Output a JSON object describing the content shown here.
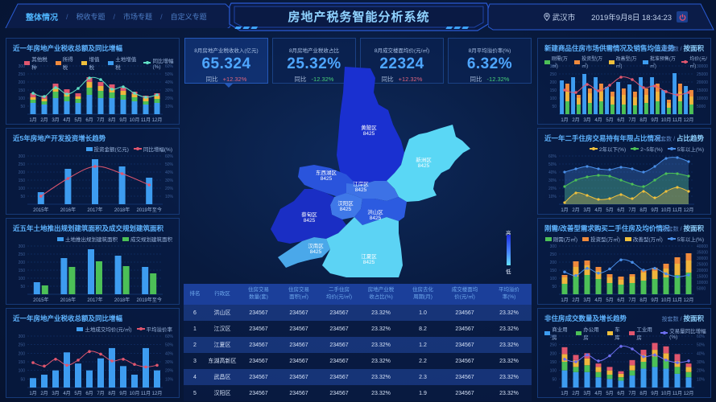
{
  "header": {
    "nav": [
      {
        "label": "整体情况",
        "active": true
      },
      {
        "label": "税收专题",
        "active": false
      },
      {
        "label": "市场专题",
        "active": false
      },
      {
        "label": "自定义专题",
        "active": false
      }
    ],
    "separator": "/",
    "title": "房地产税务智能分析系统",
    "location": "武汉市",
    "datetime": "2019年9月8日  18:34:23",
    "icons": {
      "location": "map-pin-icon",
      "power": "power-icon"
    }
  },
  "kpis": [
    {
      "label": "8月房地产业税收收入(亿元)",
      "value": "65.324",
      "compare_label": "同比",
      "change": "+12.32%",
      "direction": "up"
    },
    {
      "label": "8月房地产业税收占比",
      "value": "25.32%",
      "compare_label": "同比",
      "change": "-12.32%",
      "direction": "down"
    },
    {
      "label": "8月成交楼面均价(元/㎡)",
      "value": "22324",
      "compare_label": "同比",
      "change": "+12.32%",
      "direction": "up"
    },
    {
      "label": "8月平均溢价率(%)",
      "value": "6.32%",
      "compare_label": "同比",
      "change": "-12.32%",
      "direction": "down"
    }
  ],
  "map": {
    "districts": [
      {
        "name": "黄陂区",
        "value": "8425"
      },
      {
        "name": "新洲区",
        "value": "8425"
      },
      {
        "name": "东西湖区",
        "value": "8425"
      },
      {
        "name": "江岸区",
        "value": "8425"
      },
      {
        "name": "汉阳区",
        "value": "8425"
      },
      {
        "name": "洪山区",
        "value": "8425"
      },
      {
        "name": "蔡甸区",
        "value": "8425"
      },
      {
        "name": "汉南区",
        "value": "8425"
      },
      {
        "name": "江夏区",
        "value": "8425"
      }
    ],
    "scale_high": "高",
    "scale_low": "低"
  },
  "table": {
    "headers": [
      [
        "排名"
      ],
      [
        "行政区"
      ],
      [
        "住房交易",
        "数量(套)"
      ],
      [
        "住房交易",
        "面积(㎡)"
      ],
      [
        "二手住房",
        "均价(元/㎡)"
      ],
      [
        "房地产业税",
        "收占比(%)"
      ],
      [
        "住房去化",
        "周期(月)"
      ],
      [
        "成交楼面均",
        "价(元/㎡)"
      ],
      [
        "平均溢价",
        "率(%)"
      ]
    ],
    "rows": [
      [
        "6",
        "洪山区",
        "234567",
        "234567",
        "234567",
        "23.32%",
        "1.0",
        "234567",
        "23.32%"
      ],
      [
        "1",
        "江汉区",
        "234567",
        "234567",
        "234567",
        "23.32%",
        "8.2",
        "234567",
        "23.32%"
      ],
      [
        "2",
        "江夏区",
        "234567",
        "234567",
        "234567",
        "23.32%",
        "1.2",
        "234567",
        "23.32%"
      ],
      [
        "3",
        "东湖高新区",
        "234567",
        "234567",
        "234567",
        "23.32%",
        "2.2",
        "234567",
        "23.32%"
      ],
      [
        "4",
        "武昌区",
        "234567",
        "234567",
        "234567",
        "23.32%",
        "2.3",
        "234567",
        "23.32%"
      ],
      [
        "5",
        "汉阳区",
        "234567",
        "234567",
        "234567",
        "23.32%",
        "1.9",
        "234567",
        "23.32%"
      ]
    ]
  },
  "panels": {
    "left1": {
      "title": "近一年房地产业税收总额及同比增幅"
    },
    "left2": {
      "title": "近5年房地产开发投资增长趋势"
    },
    "left3": {
      "title": "近五年土地推出规划建筑面积及成交规划建筑面积"
    },
    "left4": {
      "title": "近一年房地产业税收总额及同比增幅"
    },
    "right1": {
      "title": "新建商品住房市场供需情况及销售均值走势",
      "switch_prefix": "按套数 /",
      "switch_active": "按面积"
    },
    "right2": {
      "title": "近一年二手住房交易持有年限占比情况",
      "switch_prefix": "按套数 /",
      "switch_active": "占比趋势"
    },
    "right3": {
      "title": "刚需/改善型需求购买二手住房及均价情况",
      "switch_prefix": "按套数 /",
      "switch_active": "按面积"
    },
    "right4": {
      "title": "非住房成交数量及增长趋势",
      "switch_prefix": "按套数 /",
      "switch_active": "按面积"
    }
  },
  "chart_data": [
    {
      "id": "left1",
      "type": "bar",
      "title": "近一年房地产业税收总额及同比增幅",
      "categories": [
        "1月",
        "2月",
        "3月",
        "4月",
        "5月",
        "6月",
        "7月",
        "8月",
        "9月",
        "10月",
        "11月",
        "12月"
      ],
      "stacked": true,
      "series": [
        {
          "name": "土地增值税",
          "color": "#3d9cf0",
          "values": [
            70,
            60,
            100,
            80,
            70,
            120,
            100,
            100,
            90,
            80,
            60,
            70
          ]
        },
        {
          "name": "增值税",
          "color": "#4cc057",
          "values": [
            20,
            20,
            40,
            30,
            25,
            45,
            45,
            35,
            30,
            25,
            20,
            25
          ]
        },
        {
          "name": "所得税",
          "color": "#f0b53c",
          "values": [
            15,
            15,
            25,
            20,
            15,
            35,
            30,
            25,
            25,
            20,
            20,
            20
          ]
        },
        {
          "name": "其他税种",
          "color": "#e0566e",
          "values": [
            25,
            20,
            25,
            25,
            20,
            30,
            25,
            25,
            20,
            15,
            15,
            15
          ]
        },
        {
          "name": "同比增幅(%)",
          "type": "line",
          "color": "#5fe0c4",
          "axis": "right",
          "values": [
            26,
            22,
            33,
            25,
            32,
            45,
            43,
            31,
            34,
            26,
            21,
            24
          ]
        }
      ],
      "ylim": [
        0,
        300
      ],
      "y_ticks": [
        50,
        100,
        150,
        200,
        250,
        300
      ],
      "y2lim": [
        0,
        60
      ],
      "y2_ticks": [
        "10%",
        "20%",
        "30%",
        "40%",
        "50%",
        "60%"
      ]
    },
    {
      "id": "left2",
      "type": "bar",
      "title": "近5年房地产开发投资增长趋势",
      "categories": [
        "2015年",
        "2016年",
        "2017年",
        "2018年",
        "2019年至今"
      ],
      "series": [
        {
          "name": "投资金额(亿元)",
          "color": "#3d9cf0",
          "values": [
            75,
            220,
            280,
            235,
            165
          ]
        },
        {
          "name": "同比增幅(%)",
          "type": "line",
          "color": "#e0566e",
          "axis": "right",
          "values": [
            10,
            32,
            47,
            38,
            24
          ]
        }
      ],
      "ylim": [
        0,
        300
      ],
      "y_ticks": [
        50,
        100,
        150,
        200,
        250,
        300
      ],
      "y2lim": [
        0,
        60
      ],
      "y2_ticks": [
        "10%",
        "20%",
        "30%",
        "40%",
        "50%",
        "60%"
      ]
    },
    {
      "id": "left3",
      "type": "bar",
      "title": "近五年土地推出规划建筑面积及成交规划建筑面积",
      "categories": [
        "2015年",
        "2016年",
        "2017年",
        "2018年",
        "2019年至今"
      ],
      "series": [
        {
          "name": "土地推出规划建筑面积",
          "color": "#3d9cf0",
          "values": [
            75,
            225,
            280,
            240,
            170
          ]
        },
        {
          "name": "成交规划建筑面积",
          "color": "#4cc057",
          "values": [
            55,
            170,
            205,
            175,
            130
          ]
        }
      ],
      "ylim": [
        0,
        300
      ],
      "y_ticks": [
        50,
        100,
        150,
        200,
        250,
        300
      ]
    },
    {
      "id": "left4",
      "type": "bar",
      "title": "近一年房地产业税收总额及同比增幅",
      "categories": [
        "1月",
        "2月",
        "3月",
        "4月",
        "5月",
        "6月",
        "7月",
        "8月",
        "9月",
        "10月",
        "11月",
        "12月"
      ],
      "series": [
        {
          "name": "土地成交均价(元/㎡)",
          "color": "#3d9cf0",
          "values": [
            55,
            75,
            100,
            205,
            140,
            100,
            170,
            230,
            125,
            75,
            230,
            100
          ]
        },
        {
          "name": "平均溢价率",
          "type": "line",
          "color": "#e0566e",
          "axis": "right",
          "values": [
            29,
            25,
            33,
            26,
            32,
            42,
            39,
            31,
            33,
            27,
            24,
            26
          ]
        }
      ],
      "ylim": [
        0,
        300
      ],
      "y_ticks": [
        50,
        100,
        150,
        200,
        250,
        300
      ],
      "y2lim": [
        0,
        60
      ],
      "y2_ticks": [
        "10%",
        "20%",
        "30%",
        "40%",
        "50%",
        "60%"
      ]
    },
    {
      "id": "right1",
      "type": "bar",
      "title": "新建商品住房市场供需情况及销售均值走势",
      "categories": [
        "1月",
        "2月",
        "3月",
        "4月",
        "5月",
        "6月",
        "7月",
        "8月",
        "9月",
        "10月",
        "11月",
        "12月"
      ],
      "series": [
        {
          "name": "批准预售(万㎡)",
          "color": "#3d9cf0",
          "values": [
            210,
            230,
            250,
            230,
            170,
            200,
            185,
            230,
            230,
            150,
            255,
            175
          ]
        },
        {
          "name": "刚需(万㎡)",
          "color": "#4cc057",
          "stack": "demand",
          "values": [
            80,
            60,
            70,
            80,
            60,
            60,
            55,
            70,
            80,
            40,
            80,
            60
          ]
        },
        {
          "name": "改善型(万㎡)",
          "color": "#f0b53c",
          "stack": "demand",
          "values": [
            60,
            40,
            60,
            60,
            50,
            60,
            50,
            50,
            60,
            30,
            60,
            50
          ]
        },
        {
          "name": "投资型(万㎡)",
          "color": "#f08a3c",
          "stack": "demand",
          "values": [
            50,
            20,
            30,
            50,
            30,
            40,
            35,
            40,
            50,
            20,
            50,
            40
          ]
        },
        {
          "name": "均价(元/㎡)",
          "type": "line",
          "color": "#e0566e",
          "axis": "right",
          "values": [
            15000,
            13500,
            18500,
            14500,
            18000,
            23000,
            21500,
            16500,
            17500,
            14000,
            12000,
            13500
          ]
        }
      ],
      "ylim": [
        0,
        300
      ],
      "y_ticks": [
        50,
        100,
        150,
        200,
        250,
        300
      ],
      "y2lim": [
        0,
        30000
      ],
      "y2_ticks": [
        "5000",
        "10000",
        "15000",
        "20000",
        "25000",
        "30000"
      ]
    },
    {
      "id": "right2",
      "type": "area",
      "title": "近一年二手住房交易持有年限占比情况",
      "categories": [
        "1月",
        "2月",
        "3月",
        "4月",
        "5月",
        "6月",
        "7月",
        "8月",
        "9月",
        "10月",
        "11月",
        "12月"
      ],
      "series": [
        {
          "name": "2年以下(%)",
          "color": "#f0c03c",
          "values": [
            2,
            14,
            11,
            6,
            7,
            12,
            7,
            16,
            8,
            16,
            21,
            16
          ]
        },
        {
          "name": "2~5年(%)",
          "color": "#4cc057",
          "values": [
            22,
            30,
            34,
            36,
            35,
            30,
            25,
            22,
            30,
            38,
            38,
            35
          ]
        },
        {
          "name": "5年以上(%)",
          "color": "#4a8fe8",
          "values": [
            40,
            44,
            47,
            44,
            43,
            46,
            44,
            40,
            47,
            57,
            58,
            53
          ]
        }
      ],
      "ylim": [
        0,
        60
      ],
      "y_ticks": [
        "10%",
        "20%",
        "30%",
        "40%",
        "50%",
        "60%"
      ]
    },
    {
      "id": "right3",
      "type": "bar",
      "title": "刚需/改善型需求购买二手住房及均价情况",
      "categories": [
        "1月",
        "2月",
        "3月",
        "4月",
        "5月",
        "6月",
        "7月",
        "8月",
        "9月",
        "10月",
        "11月",
        "12月"
      ],
      "stacked": true,
      "series": [
        {
          "name": "刚需(万㎡)",
          "color": "#4cc057",
          "values": [
            65,
            110,
            120,
            95,
            70,
            60,
            70,
            85,
            95,
            105,
            120,
            135
          ]
        },
        {
          "name": "改善型(万㎡)",
          "color": "#f0b53c",
          "values": [
            40,
            60,
            60,
            50,
            35,
            30,
            40,
            50,
            50,
            55,
            70,
            75
          ]
        },
        {
          "name": "投资型(万㎡)",
          "color": "#f08a3c",
          "values": [
            15,
            35,
            30,
            25,
            20,
            20,
            15,
            15,
            20,
            30,
            40,
            45
          ]
        },
        {
          "name": "5年以上(%)",
          "type": "line",
          "color": "#4a8fe8",
          "axis": "right",
          "values": [
            18500,
            15500,
            21500,
            17500,
            21000,
            28500,
            26500,
            20000,
            21500,
            17000,
            14500,
            16000
          ]
        }
      ],
      "ylim": [
        0,
        300
      ],
      "y_ticks": [
        50,
        100,
        150,
        200,
        250,
        300
      ],
      "y2lim": [
        0,
        40000
      ],
      "y2_ticks": [
        "5000",
        "10000",
        "15000",
        "20000",
        "25000",
        "30000",
        "35000",
        "40000"
      ]
    },
    {
      "id": "right4",
      "type": "bar",
      "title": "非住房成交数量及增长趋势",
      "categories": [
        "1月",
        "2月",
        "3月",
        "4月",
        "5月",
        "6月",
        "7月",
        "8月",
        "9月",
        "10月",
        "11月",
        "12月"
      ],
      "stacked": true,
      "series": [
        {
          "name": "商业用房",
          "color": "#3d9cf0",
          "values": [
            100,
            90,
            90,
            60,
            50,
            40,
            70,
            110,
            120,
            110,
            80,
            60
          ]
        },
        {
          "name": "办公用房",
          "color": "#4cc057",
          "values": [
            50,
            30,
            40,
            30,
            25,
            20,
            30,
            40,
            60,
            50,
            40,
            30
          ]
        },
        {
          "name": "车库",
          "color": "#f0b53c",
          "values": [
            45,
            40,
            40,
            30,
            25,
            20,
            30,
            40,
            40,
            40,
            35,
            30
          ]
        },
        {
          "name": "工业用房",
          "color": "#e0566e",
          "values": [
            40,
            30,
            30,
            20,
            20,
            15,
            30,
            30,
            40,
            40,
            40,
            20
          ]
        },
        {
          "name": "交易量同比增幅(%)",
          "type": "line",
          "color": "#6d6ef0",
          "axis": "right",
          "values": [
            33,
            30,
            38,
            31,
            37,
            48,
            45,
            36,
            38,
            32,
            29,
            31
          ]
        }
      ],
      "ylim": [
        0,
        300
      ],
      "y_ticks": [
        50,
        100,
        150,
        200,
        250,
        300
      ],
      "y2lim": [
        0,
        60
      ],
      "y2_ticks": [
        "10%",
        "20%",
        "30%",
        "40%",
        "50%",
        "60%"
      ]
    }
  ]
}
